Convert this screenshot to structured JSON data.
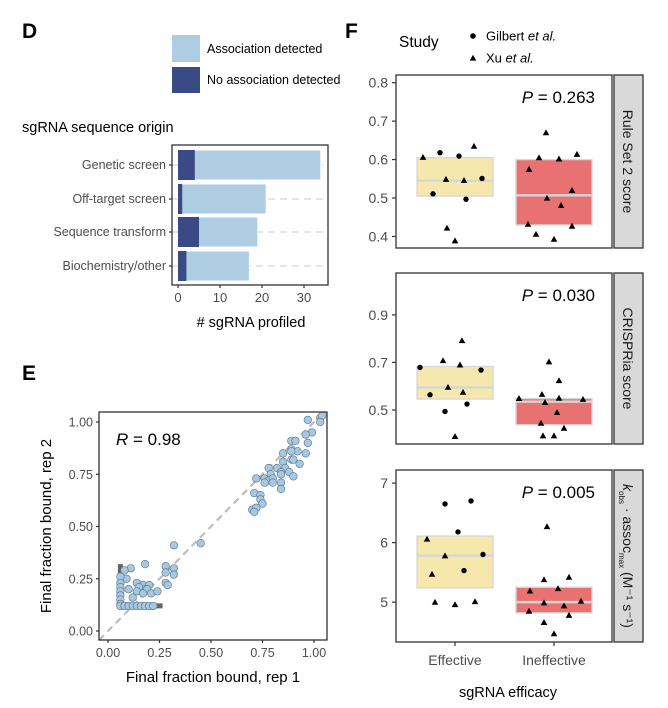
{
  "panel_labels": {
    "d": "D",
    "e": "E",
    "f": "F"
  },
  "chart_data": [
    {
      "type": "bar",
      "orientation": "horizontal",
      "stacked": true,
      "title": "sgRNA sequence origin",
      "xlabel": "# sgRNA profiled",
      "categories": [
        "Genetic screen",
        "Off-target screen",
        "Sequence transform",
        "Biochemistry/other"
      ],
      "series": [
        {
          "name": "Association detected",
          "totals": [
            34,
            21,
            19,
            17
          ],
          "color": "#aecde3"
        },
        {
          "name": "No association detected",
          "values": [
            4,
            1,
            5,
            2
          ],
          "color": "#3a4a85"
        }
      ],
      "xlim": [
        0,
        36
      ],
      "xticks": [
        "0",
        "10",
        "20",
        "30"
      ],
      "grid": "dashed horizontal",
      "legend": "top"
    },
    {
      "type": "scatter",
      "xlabel": "Final fraction bound, rep 1",
      "ylabel": "Final fraction bound, rep 2",
      "annotation": {
        "symbol": "R",
        "text": " = 0.98"
      },
      "xlim": [
        -0.04,
        1.06
      ],
      "ylim": [
        -0.04,
        1.05
      ],
      "xticks": [
        "0.00",
        "0.25",
        "0.50",
        "0.75",
        "1.00"
      ],
      "yticks": [
        "0.00",
        "0.25",
        "0.50",
        "0.75",
        "1.00"
      ],
      "reference_line": "y = x (dashed)",
      "point_color": "#a6c8e0",
      "floor_segments": [
        {
          "x": [
            0.06,
            0.06
          ],
          "y": [
            0.12,
            0.32
          ]
        },
        {
          "x": [
            0.055,
            0.265
          ],
          "y": [
            0.12,
            0.12
          ]
        }
      ],
      "points": [
        [
          0.97,
          1.01
        ],
        [
          1.03,
          1.02
        ],
        [
          1.04,
          1.03
        ],
        [
          1.03,
          1.0
        ],
        [
          0.99,
          0.95
        ],
        [
          0.96,
          0.94
        ],
        [
          0.97,
          0.9
        ],
        [
          0.89,
          0.91
        ],
        [
          0.91,
          0.91
        ],
        [
          0.89,
          0.87
        ],
        [
          0.92,
          0.86
        ],
        [
          0.89,
          0.86
        ],
        [
          0.85,
          0.85
        ],
        [
          0.96,
          0.85
        ],
        [
          0.89,
          0.82
        ],
        [
          0.9,
          0.82
        ],
        [
          0.93,
          0.8
        ],
        [
          0.85,
          0.81
        ],
        [
          0.82,
          0.78
        ],
        [
          0.86,
          0.78
        ],
        [
          0.78,
          0.78
        ],
        [
          0.84,
          0.76
        ],
        [
          0.88,
          0.76
        ],
        [
          0.9,
          0.74
        ],
        [
          0.84,
          0.75
        ],
        [
          0.79,
          0.75
        ],
        [
          0.76,
          0.73
        ],
        [
          0.78,
          0.72
        ],
        [
          0.8,
          0.73
        ],
        [
          0.8,
          0.71
        ],
        [
          0.76,
          0.71
        ],
        [
          0.84,
          0.71
        ],
        [
          0.84,
          0.68
        ],
        [
          0.72,
          0.73
        ],
        [
          0.71,
          0.66
        ],
        [
          0.74,
          0.65
        ],
        [
          0.74,
          0.63
        ],
        [
          0.75,
          0.61
        ],
        [
          0.7,
          0.58
        ],
        [
          0.72,
          0.59
        ],
        [
          0.71,
          0.57
        ],
        [
          0.45,
          0.42
        ],
        [
          0.32,
          0.41
        ],
        [
          0.28,
          0.31
        ],
        [
          0.32,
          0.3
        ],
        [
          0.28,
          0.28
        ],
        [
          0.32,
          0.27
        ],
        [
          0.28,
          0.23
        ],
        [
          0.29,
          0.22
        ],
        [
          0.18,
          0.32
        ],
        [
          0.11,
          0.3
        ],
        [
          0.08,
          0.29
        ],
        [
          0.09,
          0.25
        ],
        [
          0.14,
          0.23
        ],
        [
          0.17,
          0.22
        ],
        [
          0.2,
          0.22
        ],
        [
          0.18,
          0.2
        ],
        [
          0.15,
          0.21
        ],
        [
          0.14,
          0.19
        ],
        [
          0.19,
          0.2
        ],
        [
          0.17,
          0.18
        ],
        [
          0.21,
          0.18
        ],
        [
          0.24,
          0.19
        ],
        [
          0.12,
          0.16
        ],
        [
          0.1,
          0.2
        ],
        [
          0.06,
          0.26
        ],
        [
          0.06,
          0.23
        ],
        [
          0.06,
          0.21
        ],
        [
          0.06,
          0.19
        ],
        [
          0.06,
          0.17
        ],
        [
          0.06,
          0.15
        ],
        [
          0.06,
          0.13
        ],
        [
          0.06,
          0.12
        ],
        [
          0.08,
          0.12
        ],
        [
          0.1,
          0.12
        ],
        [
          0.12,
          0.12
        ],
        [
          0.14,
          0.12
        ],
        [
          0.16,
          0.12
        ],
        [
          0.18,
          0.12
        ],
        [
          0.2,
          0.12
        ],
        [
          0.22,
          0.12
        ]
      ]
    },
    {
      "type": "box",
      "xlabel": "sgRNA efficacy",
      "categories": [
        "Effective",
        "Ineffective"
      ],
      "category_colors": [
        "#f6e8ad",
        "#e87272"
      ],
      "legend": {
        "title": "Study",
        "entries": [
          {
            "pre": "Gilbert ",
            "italic": "et al.",
            "shape": "circle"
          },
          {
            "pre": "Xu ",
            "italic": "et al.",
            "shape": "triangle"
          }
        ],
        "placement": "top"
      },
      "facets": [
        {
          "strip": {
            "main": "Rule Set 2 score"
          },
          "p_value": {
            "symbol": "P",
            "text": " = 0.263"
          },
          "ylim": [
            0.37,
            0.82
          ],
          "yticks": [
            0.4,
            0.5,
            0.6,
            0.7,
            0.8
          ],
          "ytick_labels": [
            "0.4",
            "0.5",
            "0.6",
            "0.7",
            "0.8"
          ],
          "boxes": [
            {
              "q1": 0.505,
              "median": 0.545,
              "q3": 0.605
            },
            {
              "q1": 0.43,
              "median": 0.507,
              "q3": 0.6
            }
          ],
          "points": [
            [
              [
                0.606,
                1
              ],
              [
                0.618,
                0
              ],
              [
                0.609,
                0
              ],
              [
                0.635,
                1
              ],
              [
                0.549,
                1
              ],
              [
                0.546,
                1
              ],
              [
                0.551,
                0
              ],
              [
                0.511,
                0
              ],
              [
                0.497,
                0
              ],
              [
                0.422,
                1
              ],
              [
                0.389,
                1
              ]
            ],
            [
              [
                0.67,
                1
              ],
              [
                0.575,
                1
              ],
              [
                0.605,
                1
              ],
              [
                0.602,
                1
              ],
              [
                0.614,
                1
              ],
              [
                0.52,
                1
              ],
              [
                0.5,
                1
              ],
              [
                0.481,
                1
              ],
              [
                0.432,
                1
              ],
              [
                0.427,
                1
              ],
              [
                0.406,
                1
              ],
              [
                0.393,
                1
              ]
            ]
          ]
        },
        {
          "strip": {
            "main": "CRISPRia score"
          },
          "p_value": {
            "symbol": "P",
            "text": " = 0.030"
          },
          "ylim": [
            0.357,
            1.076
          ],
          "yticks": [
            0.5,
            0.7,
            0.9
          ],
          "ytick_labels": [
            "0.5",
            "0.7",
            "0.9"
          ],
          "boxes": [
            {
              "q1": 0.546,
              "median": 0.595,
              "q3": 0.683
            },
            {
              "q1": 0.438,
              "median": 0.535,
              "q3": 0.548
            }
          ],
          "points": [
            [
              [
                0.679,
                0
              ],
              [
                0.708,
                1
              ],
              [
                0.792,
                1
              ],
              [
                0.69,
                1
              ],
              [
                0.668,
                0
              ],
              [
                0.596,
                1
              ],
              [
                0.564,
                0
              ],
              [
                0.575,
                1
              ],
              [
                0.525,
                0
              ],
              [
                0.494,
                0
              ],
              [
                0.389,
                1
              ]
            ],
            [
              [
                0.703,
                1
              ],
              [
                0.624,
                1
              ],
              [
                0.549,
                1
              ],
              [
                0.566,
                1
              ],
              [
                0.55,
                1
              ],
              [
                0.545,
                1
              ],
              [
                0.532,
                1
              ],
              [
                0.49,
                1
              ],
              [
                0.445,
                1
              ],
              [
                0.424,
                1
              ],
              [
                0.392,
                1
              ],
              [
                0.392,
                1
              ]
            ]
          ]
        },
        {
          "strip": {
            "k": "k",
            "obs": "obs",
            "mid": " · assoc",
            "max": "max",
            "unit": " (M⁻¹ s⁻¹)"
          },
          "p_value": {
            "symbol": "P",
            "text": " = 0.005"
          },
          "ylim": [
            4.33,
            7.22
          ],
          "yticks": [
            5,
            6,
            7
          ],
          "ytick_labels": [
            "5",
            "6",
            "7"
          ],
          "boxes": [
            {
              "q1": 5.24,
              "median": 5.78,
              "q3": 6.11
            },
            {
              "q1": 4.82,
              "median": 5.0,
              "q3": 5.25
            }
          ],
          "points": [
            [
              [
                6.65,
                0
              ],
              [
                6.7,
                0
              ],
              [
                6.18,
                0
              ],
              [
                6.06,
                1
              ],
              [
                5.78,
                1
              ],
              [
                5.8,
                0
              ],
              [
                5.47,
                1
              ],
              [
                5.53,
                0
              ],
              [
                5.0,
                1
              ],
              [
                4.96,
                1
              ],
              [
                5.01,
                1
              ]
            ],
            [
              [
                6.27,
                1
              ],
              [
                5.38,
                1
              ],
              [
                5.42,
                1
              ],
              [
                5.19,
                1
              ],
              [
                5.23,
                1
              ],
              [
                4.99,
                1
              ],
              [
                4.94,
                1
              ],
              [
                5.02,
                1
              ],
              [
                4.85,
                1
              ],
              [
                4.78,
                1
              ],
              [
                4.66,
                1
              ],
              [
                4.47,
                1
              ]
            ]
          ]
        }
      ]
    }
  ]
}
